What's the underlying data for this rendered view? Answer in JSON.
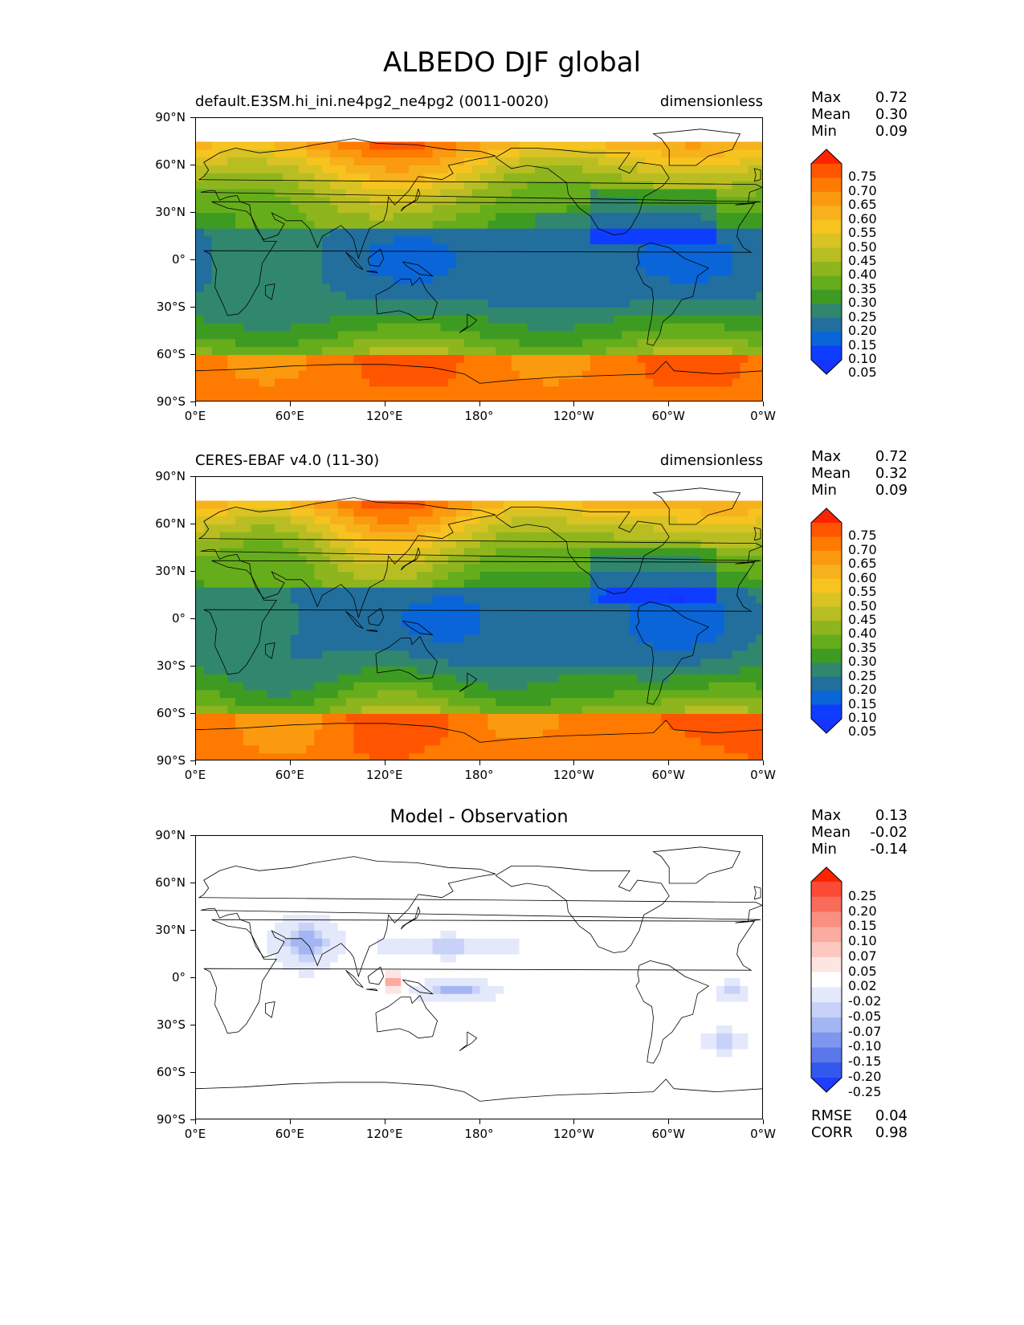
{
  "suptitle": "ALBEDO DJF global",
  "lat_ticks": [
    "90°N",
    "60°N",
    "30°N",
    "0°",
    "30°S",
    "60°S",
    "90°S"
  ],
  "lon_ticks": [
    "0°E",
    "60°E",
    "120°E",
    "180°",
    "120°W",
    "60°W",
    "0°W"
  ],
  "panels": [
    {
      "title_left": "default.E3SM.hi_ini.ne4pg2_ne4pg2 (0011-0020)",
      "title_right": "dimensionless",
      "title_center": "",
      "stats": [
        {
          "key": "Max",
          "value": "0.72"
        },
        {
          "key": "Mean",
          "value": "0.30"
        },
        {
          "key": "Min",
          "value": "0.09"
        }
      ],
      "colorbar_labels": [
        "0.75",
        "0.70",
        "0.65",
        "0.60",
        "0.55",
        "0.50",
        "0.45",
        "0.40",
        "0.35",
        "0.30",
        "0.25",
        "0.20",
        "0.15",
        "0.10",
        "0.05"
      ],
      "colorbar_colors": [
        "#ff2200",
        "#ff5500",
        "#ff7a00",
        "#fb9a0e",
        "#f7b11c",
        "#f6c31f",
        "#d8c224",
        "#b8be22",
        "#8fb51e",
        "#66ad1c",
        "#3e9b22",
        "#31876e",
        "#226f9e",
        "#0a66d8",
        "#0f3dff",
        "#1535ff"
      ]
    },
    {
      "title_left": "CERES-EBAF v4.0 (11-30)",
      "title_right": "dimensionless",
      "title_center": "",
      "stats": [
        {
          "key": "Max",
          "value": "0.72"
        },
        {
          "key": "Mean",
          "value": "0.32"
        },
        {
          "key": "Min",
          "value": "0.09"
        }
      ],
      "colorbar_labels": [
        "0.75",
        "0.70",
        "0.65",
        "0.60",
        "0.55",
        "0.50",
        "0.45",
        "0.40",
        "0.35",
        "0.30",
        "0.25",
        "0.20",
        "0.15",
        "0.10",
        "0.05"
      ],
      "colorbar_colors": [
        "#ff2200",
        "#ff5500",
        "#ff7a00",
        "#fb9a0e",
        "#f7b11c",
        "#f6c31f",
        "#d8c224",
        "#b8be22",
        "#8fb51e",
        "#66ad1c",
        "#3e9b22",
        "#31876e",
        "#226f9e",
        "#0a66d8",
        "#0f3dff",
        "#1535ff"
      ]
    },
    {
      "title_left": "",
      "title_right": "",
      "title_center": "Model - Observation",
      "stats": [
        {
          "key": "Max",
          "value": "0.13"
        },
        {
          "key": "Mean",
          "value": "-0.02"
        },
        {
          "key": "Min",
          "value": "-0.14"
        }
      ],
      "extra_stats": [
        {
          "key": "RMSE",
          "value": "0.04"
        },
        {
          "key": "CORR",
          "value": "0.98"
        }
      ],
      "colorbar_labels": [
        "0.25",
        "0.20",
        "0.15",
        "0.10",
        "0.07",
        "0.05",
        "0.02",
        "-0.02",
        "-0.05",
        "-0.07",
        "-0.10",
        "-0.15",
        "-0.20",
        "-0.25"
      ],
      "colorbar_colors": [
        "#ff2200",
        "#fb4a35",
        "#f96b5a",
        "#fa8f82",
        "#fbaba0",
        "#fcc8c0",
        "#fde6e2",
        "#ffffff",
        "#e3e8fb",
        "#c8d2f8",
        "#a4b5f3",
        "#7f96ee",
        "#5b78ea",
        "#3358ee",
        "#1f3cff"
      ]
    }
  ]
}
